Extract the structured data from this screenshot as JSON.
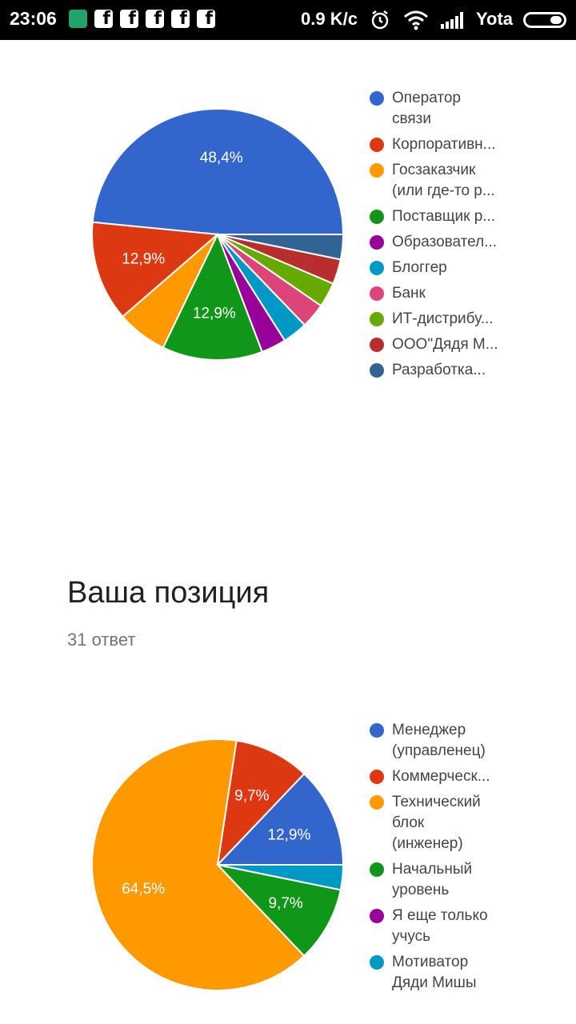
{
  "status_bar": {
    "time": "23:06",
    "network_speed": "0.9 K/c",
    "carrier": "Yota",
    "icons": [
      "shield-icon",
      "facebook-icon",
      "facebook-icon",
      "facebook-icon",
      "facebook-icon",
      "facebook-icon",
      "alarm-icon",
      "wifi-icon",
      "signal-icon",
      "battery-icon"
    ]
  },
  "charts": [
    {
      "chart_data": {
        "type": "pie",
        "categories": [
          "Оператор связи",
          "Корпоративн...",
          "Госзаказчик (или где-то р...",
          "Поставщик р...",
          "Образовател...",
          "Блоггер",
          "Банк",
          "ИТ-дистрибу...",
          "ООО\"Дядя М...",
          "Разработка..."
        ],
        "values": [
          48.4,
          12.9,
          6.5,
          12.9,
          3.2,
          3.2,
          3.2,
          3.2,
          3.2,
          3.2
        ],
        "colors": [
          "#3366cc",
          "#dc3912",
          "#ff9900",
          "#109618",
          "#990099",
          "#0099c6",
          "#dd4477",
          "#66aa00",
          "#b82e2e",
          "#316395"
        ],
        "data_labels": [
          "48,4%",
          "12,9%",
          "",
          "12,9%",
          "",
          "",
          "",
          "",
          "",
          ""
        ],
        "legend_position": "right"
      },
      "legend_labels": [
        "Оператор\nсвязи",
        "Корпоративн...",
        "Госзаказчик\n(или где-то р...",
        "Поставщик р...",
        "Образовател...",
        "Блоггер",
        "Банк",
        "ИТ-дистрибу...",
        "ООО\"Дядя М...",
        "Разработка..."
      ]
    },
    {
      "title": "Ваша позиция",
      "response_count": "31 ответ",
      "chart_data": {
        "type": "pie",
        "categories": [
          "Менеджер (управленец)",
          "Коммерческ...",
          "Технический блок (инженер)",
          "Начальный уровень",
          "Я еще только учусь",
          "Мотиватор Дяди Мишы"
        ],
        "values": [
          12.9,
          9.7,
          64.5,
          9.7,
          0,
          3.2
        ],
        "colors": [
          "#3366cc",
          "#dc3912",
          "#ff9900",
          "#109618",
          "#990099",
          "#0099c6"
        ],
        "data_labels": [
          "12,9%",
          "9,7%",
          "64,5%",
          "9,7%",
          "",
          ""
        ],
        "legend_position": "right"
      },
      "legend_labels": [
        "Менеджер\n(управленец)",
        "Коммерческ...",
        "Технический\nблок\n(инженер)",
        "Начальный\nуровень",
        "Я еще только\nучусь",
        "Мотиватор\nДяди Мишы"
      ]
    }
  ]
}
